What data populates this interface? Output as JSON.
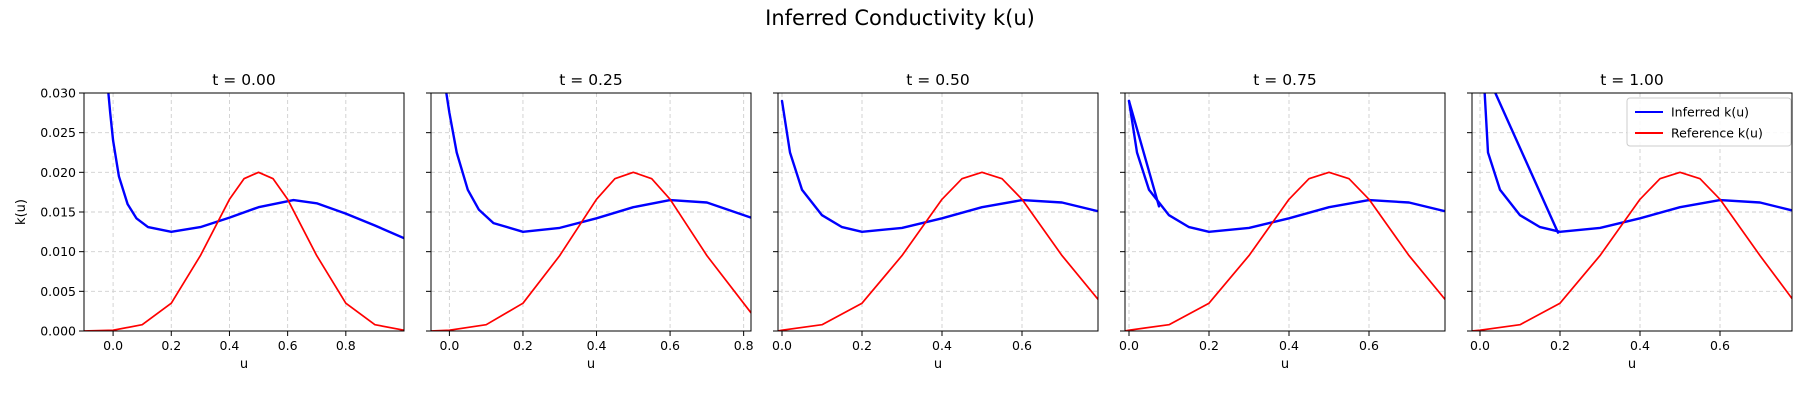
{
  "figure": {
    "suptitle": "Inferred Conductivity k(u)"
  },
  "legend": {
    "placement": "upper-right of last panel",
    "entries": [
      {
        "label": "Inferred k(u)",
        "color": "#0000ff"
      },
      {
        "label": "Reference k(u)",
        "color": "#ff0000"
      }
    ]
  },
  "chart_data": [
    {
      "type": "line",
      "title": "t = 0.00",
      "xlabel": "u",
      "ylabel": "k(u)",
      "xlim": [
        -0.1,
        1.0
      ],
      "ylim": [
        0,
        0.03
      ],
      "xticks": [
        0.0,
        0.2,
        0.4,
        0.6,
        0.8
      ],
      "yticks": [
        0.0,
        0.005,
        0.01,
        0.015,
        0.02,
        0.025,
        0.03
      ],
      "grid": true,
      "series": [
        {
          "name": "Inferred k(u)",
          "color": "#0000ff",
          "x": [
            -0.02,
            -0.01,
            0.0,
            0.02,
            0.05,
            0.08,
            0.12,
            0.2,
            0.3,
            0.4,
            0.5,
            0.62,
            0.7,
            0.8,
            0.9,
            1.0
          ],
          "y": [
            0.0315,
            0.0275,
            0.024,
            0.0195,
            0.016,
            0.0142,
            0.0131,
            0.0125,
            0.0131,
            0.0143,
            0.0156,
            0.0165,
            0.0161,
            0.0148,
            0.0133,
            0.0117
          ]
        },
        {
          "name": "Reference k(u)",
          "color": "#ff0000",
          "x": [
            -0.1,
            0.0,
            0.1,
            0.2,
            0.3,
            0.4,
            0.45,
            0.5,
            0.55,
            0.6,
            0.7,
            0.8,
            0.9,
            1.0
          ],
          "y": [
            0.0,
            0.0001,
            0.0008,
            0.0035,
            0.0095,
            0.0166,
            0.0192,
            0.02,
            0.0192,
            0.0166,
            0.0095,
            0.0035,
            0.0008,
            0.0001
          ]
        }
      ]
    },
    {
      "type": "line",
      "title": "t = 0.25",
      "xlabel": "u",
      "ylabel": "",
      "xlim": [
        -0.05,
        0.82
      ],
      "ylim": [
        0,
        0.03
      ],
      "xticks": [
        0.0,
        0.2,
        0.4,
        0.6,
        0.8
      ],
      "yticks": [
        0.0,
        0.005,
        0.01,
        0.015,
        0.02,
        0.025,
        0.03
      ],
      "grid": true,
      "series": [
        {
          "name": "Inferred k(u)",
          "color": "#0000ff",
          "x": [
            -0.01,
            0.0,
            0.02,
            0.05,
            0.08,
            0.12,
            0.2,
            0.3,
            0.4,
            0.5,
            0.6,
            0.7,
            0.82
          ],
          "y": [
            0.0305,
            0.0275,
            0.0225,
            0.0178,
            0.0153,
            0.0136,
            0.0125,
            0.013,
            0.0142,
            0.0156,
            0.0165,
            0.0162,
            0.0143
          ]
        },
        {
          "name": "Reference k(u)",
          "color": "#ff0000",
          "x": [
            -0.05,
            0.0,
            0.1,
            0.2,
            0.3,
            0.4,
            0.45,
            0.5,
            0.55,
            0.6,
            0.7,
            0.82
          ],
          "y": [
            0.0,
            0.0001,
            0.0008,
            0.0035,
            0.0095,
            0.0166,
            0.0192,
            0.02,
            0.0192,
            0.0166,
            0.0095,
            0.0023
          ]
        }
      ]
    },
    {
      "type": "line",
      "title": "t = 0.50",
      "xlabel": "u",
      "ylabel": "",
      "xlim": [
        -0.01,
        0.79
      ],
      "ylim": [
        0,
        0.03
      ],
      "xticks": [
        0.0,
        0.2,
        0.4,
        0.6
      ],
      "yticks": [
        0.0,
        0.005,
        0.01,
        0.015,
        0.02,
        0.025,
        0.03
      ],
      "grid": true,
      "series": [
        {
          "name": "Inferred k(u)",
          "color": "#0000ff",
          "x": [
            0.0,
            0.02,
            0.05,
            0.1,
            0.15,
            0.2,
            0.3,
            0.4,
            0.5,
            0.6,
            0.7,
            0.79
          ],
          "y": [
            0.029,
            0.0225,
            0.0178,
            0.0146,
            0.0131,
            0.0125,
            0.013,
            0.0142,
            0.0156,
            0.0165,
            0.0162,
            0.0151
          ]
        },
        {
          "name": "Reference k(u)",
          "color": "#ff0000",
          "x": [
            -0.01,
            0.0,
            0.1,
            0.2,
            0.3,
            0.4,
            0.45,
            0.5,
            0.55,
            0.6,
            0.7,
            0.79
          ],
          "y": [
            0.0,
            0.0001,
            0.0008,
            0.0035,
            0.0095,
            0.0166,
            0.0192,
            0.02,
            0.0192,
            0.0166,
            0.0095,
            0.004
          ]
        }
      ]
    },
    {
      "type": "line",
      "title": "t = 0.75",
      "xlabel": "u",
      "ylabel": "",
      "xlim": [
        -0.01,
        0.79
      ],
      "ylim": [
        0,
        0.03
      ],
      "xticks": [
        0.0,
        0.2,
        0.4,
        0.6
      ],
      "yticks": [
        0.0,
        0.005,
        0.01,
        0.015,
        0.02,
        0.025,
        0.03
      ],
      "grid": true,
      "series": [
        {
          "name": "Inferred k(u)",
          "color": "#0000ff",
          "x": [
            0.0,
            0.02,
            0.05,
            0.1,
            0.15,
            0.2,
            0.3,
            0.4,
            0.5,
            0.6,
            0.7,
            0.79
          ],
          "y": [
            0.029,
            0.0225,
            0.0178,
            0.0146,
            0.0131,
            0.0125,
            0.013,
            0.0142,
            0.0156,
            0.0165,
            0.0162,
            0.0151
          ]
        },
        {
          "name": "Inferred k(u)",
          "color": "#0000ff",
          "x": [
            0.0,
            0.075
          ],
          "y": [
            0.029,
            0.0157
          ]
        },
        {
          "name": "Reference k(u)",
          "color": "#ff0000",
          "x": [
            -0.01,
            0.0,
            0.1,
            0.2,
            0.3,
            0.4,
            0.45,
            0.5,
            0.55,
            0.6,
            0.7,
            0.79
          ],
          "y": [
            0.0,
            0.0001,
            0.0008,
            0.0035,
            0.0095,
            0.0166,
            0.0192,
            0.02,
            0.0192,
            0.0166,
            0.0095,
            0.004
          ]
        }
      ]
    },
    {
      "type": "line",
      "title": "t = 1.00",
      "xlabel": "u",
      "ylabel": "",
      "xlim": [
        -0.02,
        0.78
      ],
      "ylim": [
        0,
        0.03
      ],
      "xticks": [
        0.0,
        0.2,
        0.4,
        0.6
      ],
      "yticks": [
        0.0,
        0.005,
        0.01,
        0.015,
        0.02,
        0.025,
        0.03
      ],
      "grid": true,
      "series": [
        {
          "name": "Inferred k(u)",
          "color": "#0000ff",
          "x": [
            0.01,
            0.02,
            0.05,
            0.1,
            0.15,
            0.2,
            0.3,
            0.4,
            0.5,
            0.6,
            0.7,
            0.78
          ],
          "y": [
            0.0315,
            0.0225,
            0.0178,
            0.0146,
            0.0131,
            0.0125,
            0.013,
            0.0142,
            0.0156,
            0.0165,
            0.0162,
            0.0152
          ]
        },
        {
          "name": "Inferred k(u)",
          "color": "#0000ff",
          "x": [
            0.025,
            0.195
          ],
          "y": [
            0.0315,
            0.0124
          ]
        },
        {
          "name": "Reference k(u)",
          "color": "#ff0000",
          "x": [
            -0.02,
            0.0,
            0.1,
            0.2,
            0.3,
            0.4,
            0.45,
            0.5,
            0.55,
            0.6,
            0.7,
            0.78
          ],
          "y": [
            0.0,
            0.0001,
            0.0008,
            0.0035,
            0.0095,
            0.0166,
            0.0192,
            0.02,
            0.0192,
            0.0166,
            0.0095,
            0.0041
          ]
        }
      ]
    }
  ]
}
